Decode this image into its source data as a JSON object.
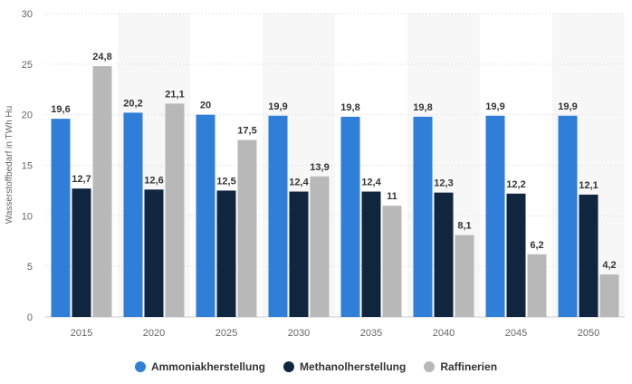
{
  "chart_data": {
    "type": "bar",
    "categories": [
      "2015",
      "2020",
      "2025",
      "2030",
      "2035",
      "2040",
      "2045",
      "2050"
    ],
    "series": [
      {
        "name": "Ammoniakherstellung",
        "color": "#2f7ed8",
        "values": [
          19.6,
          20.2,
          20,
          19.9,
          19.8,
          19.8,
          19.9,
          19.9
        ],
        "labels": [
          "19,6",
          "20,2",
          "20",
          "19,9",
          "19,8",
          "19,8",
          "19,9",
          "19,9"
        ]
      },
      {
        "name": "Methanolherstellung",
        "color": "#10263f",
        "values": [
          12.7,
          12.6,
          12.5,
          12.4,
          12.4,
          12.3,
          12.2,
          12.1
        ],
        "labels": [
          "12,7",
          "12,6",
          "12,5",
          "12,4",
          "12,4",
          "12,3",
          "12,2",
          "12,1"
        ]
      },
      {
        "name": "Raffinerien",
        "color": "#b8b8b8",
        "values": [
          24.8,
          21.1,
          17.5,
          13.9,
          11,
          8.1,
          6.2,
          4.2
        ],
        "labels": [
          "24,8",
          "21,1",
          "17,5",
          "13,9",
          "11",
          "8,1",
          "6,2",
          "4,2"
        ]
      }
    ],
    "ylabel": "Wasserstoffbedarf in TWh Hu",
    "xlabel": "",
    "ylim": [
      0,
      30
    ],
    "yticks": [
      0,
      5,
      10,
      15,
      20,
      25,
      30
    ],
    "grid": true,
    "legend_position": "bottom-center"
  }
}
